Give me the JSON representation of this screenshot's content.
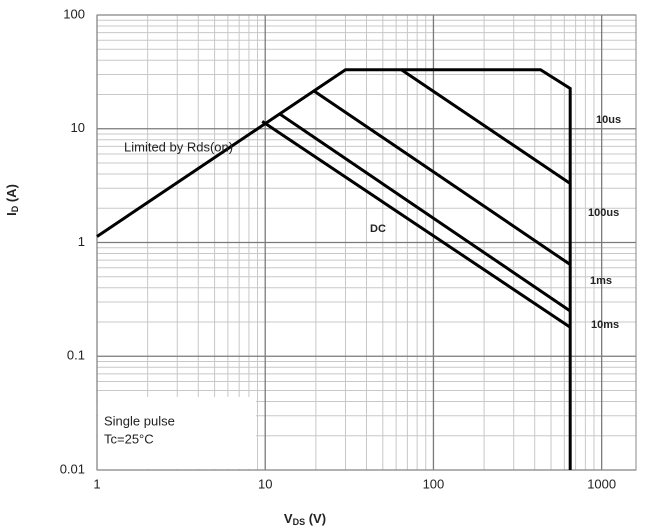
{
  "chart_data": {
    "type": "line",
    "log_x": true,
    "log_y": true,
    "grid": "major-minor",
    "xlim": [
      1,
      1600
    ],
    "ylim": [
      0.01,
      100
    ],
    "xticks": [
      1,
      10,
      100,
      1000
    ],
    "yticks": [
      0.01,
      0.1,
      1,
      10,
      100
    ],
    "x_label": {
      "main": "V",
      "sub": "DS",
      "unit": " (V)"
    },
    "y_label": {
      "main": "I",
      "sub": "D",
      "unit": " (A)"
    },
    "annotations": [
      "Limited by Rds(on)",
      "DC"
    ],
    "note": [
      "Single pulse",
      "Tc=25°C"
    ],
    "series": [
      {
        "color": "#000000",
        "x": [
          1,
          30,
          433,
          650,
          650
        ],
        "values": [
          1.13,
          33,
          33,
          22.6,
          0.01
        ]
      },
      {
        "name": "10us",
        "color": "#000000",
        "x": [
          64.5,
          650
        ],
        "values": [
          33,
          3.3
        ]
      },
      {
        "name": "100us",
        "color": "#000000",
        "x": [
          19.3,
          650
        ],
        "values": [
          21.7,
          0.64
        ]
      },
      {
        "name": "1ms",
        "color": "#000000",
        "x": [
          12.1,
          650
        ],
        "values": [
          13.6,
          0.25
        ]
      },
      {
        "name": "10ms",
        "color": "#000000",
        "x": [
          9.6,
          650
        ],
        "values": [
          11.6,
          0.18
        ]
      }
    ]
  }
}
